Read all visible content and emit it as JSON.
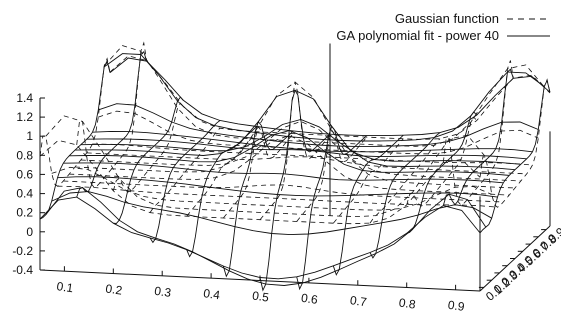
{
  "chart_data": {
    "type": "surface",
    "title": "",
    "z_ticks": [
      "1.4",
      "1.2",
      "1",
      "0.8",
      "0.6",
      "0.4",
      "0.2",
      "0",
      "-0.2",
      "-0.4"
    ],
    "z_range": [
      -0.4,
      1.4
    ],
    "x_ticks": [
      "0.1",
      "0.2",
      "0.3",
      "0.4",
      "0.5",
      "0.6",
      "0.7",
      "0.8",
      "0.9"
    ],
    "x_range": [
      0.05,
      0.95
    ],
    "y_ticks": [
      "0.1",
      "0.2",
      "0.3",
      "0.4",
      "0.5",
      "0.6",
      "0.7",
      "0.8",
      "0.9"
    ],
    "y_range": [
      0.05,
      0.95
    ],
    "legend_position": "top-right",
    "series": [
      {
        "name": "Gaussian function",
        "line_style": "dashed"
      },
      {
        "name": "GA polynomial fit - power 40",
        "line_style": "solid"
      }
    ],
    "peaks": [
      {
        "x": 0.1,
        "y": 0.9,
        "z": 1.0
      },
      {
        "x": 0.9,
        "y": 0.9,
        "z": 1.0
      },
      {
        "x": 0.5,
        "y": 0.5,
        "z": 1.0
      },
      {
        "x": 0.1,
        "y": 0.1,
        "z": 1.0
      },
      {
        "x": 0.9,
        "y": 0.1,
        "z": 1.0
      }
    ],
    "grid": false
  }
}
